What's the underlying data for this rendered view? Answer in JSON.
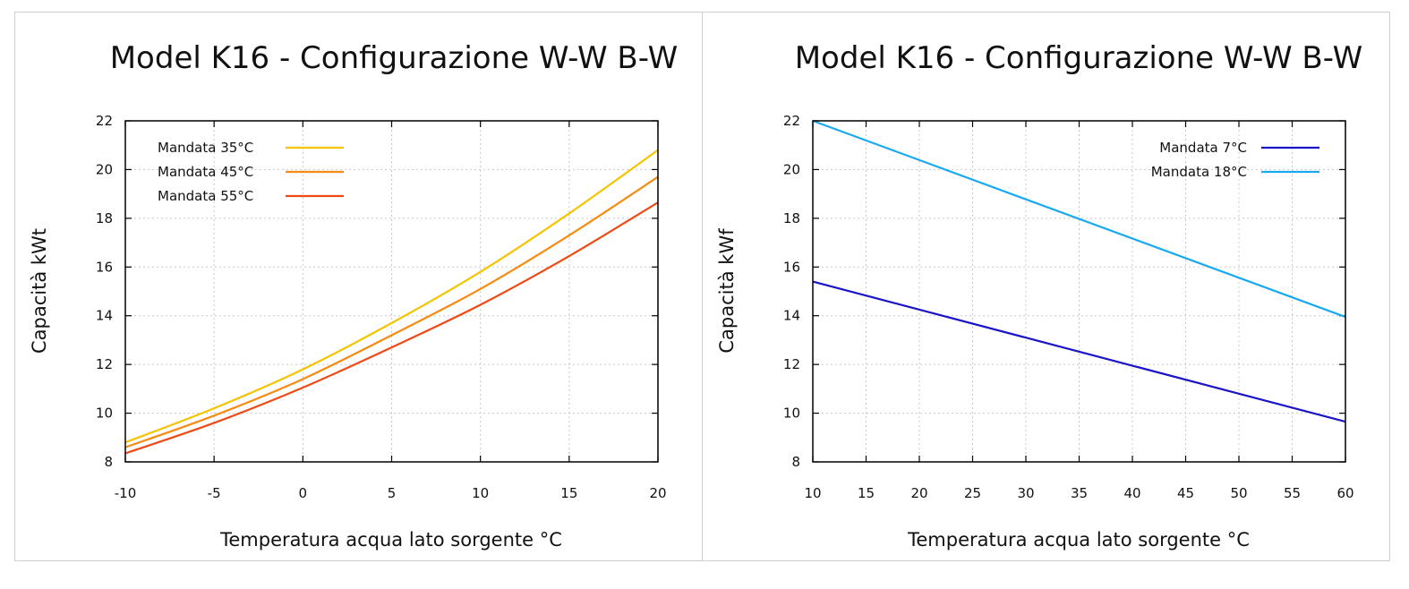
{
  "chart_data": [
    {
      "type": "line",
      "title": "Model K16 - Configurazione W-W B-W",
      "xlabel": "Temperatura acqua lato sorgente °C",
      "ylabel": "Capacità kWt",
      "xlim": [
        -10,
        20
      ],
      "ylim": [
        8,
        22
      ],
      "xticks": [
        "-10",
        "-5",
        "0",
        "5",
        "10",
        "15",
        "20"
      ],
      "yticks": [
        "8",
        "10",
        "12",
        "14",
        "16",
        "18",
        "20",
        "22"
      ],
      "grid": true,
      "legend_position": "top-left",
      "series": [
        {
          "name": "Mandata 35°C",
          "color": "#f5c400",
          "x": [
            -10,
            -5,
            0,
            5,
            10,
            15,
            20
          ],
          "y": [
            8.8,
            10.2,
            11.8,
            13.7,
            15.8,
            18.2,
            20.8
          ]
        },
        {
          "name": "Mandata 45°C",
          "color": "#f78b12",
          "x": [
            -10,
            -5,
            0,
            5,
            10,
            15,
            20
          ],
          "y": [
            8.6,
            9.9,
            11.4,
            13.2,
            15.1,
            17.3,
            19.7
          ]
        },
        {
          "name": "Mandata 55°C",
          "color": "#ef4a15",
          "x": [
            -10,
            -5,
            0,
            5,
            10,
            15,
            20
          ],
          "y": [
            8.35,
            9.6,
            11.05,
            12.7,
            14.45,
            16.45,
            18.65
          ]
        }
      ]
    },
    {
      "type": "line",
      "title": "Model K16 - Configurazione W-W B-W",
      "xlabel": "Temperatura acqua lato sorgente °C",
      "ylabel": "Capacità kWf",
      "xlim": [
        10,
        60
      ],
      "ylim": [
        8,
        22
      ],
      "xticks": [
        "10",
        "15",
        "20",
        "25",
        "30",
        "35",
        "40",
        "45",
        "50",
        "55",
        "60"
      ],
      "yticks": [
        "8",
        "10",
        "12",
        "14",
        "16",
        "18",
        "20",
        "22"
      ],
      "grid": true,
      "legend_position": "top-right",
      "series": [
        {
          "name": "Mandata 7°C",
          "color": "#1a14c8",
          "x": [
            10,
            60
          ],
          "y": [
            15.4,
            9.65
          ]
        },
        {
          "name": "Mandata 18°C",
          "color": "#19a9f0",
          "x": [
            10,
            60
          ],
          "y": [
            22.0,
            13.95
          ]
        }
      ]
    }
  ]
}
